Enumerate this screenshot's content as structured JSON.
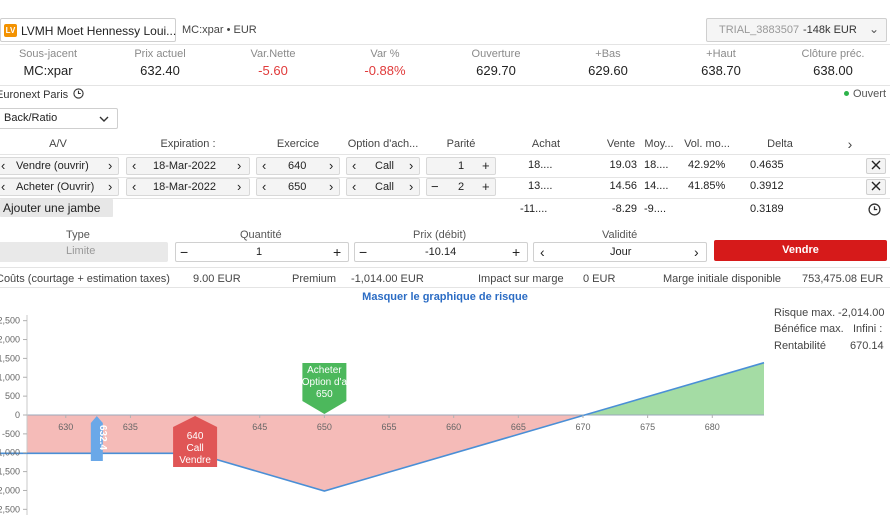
{
  "header": {
    "ticker_name": "LVMH Moet Hennessy Loui...",
    "ticker_code": "MC:xpar • EUR",
    "logo_text": "LV",
    "account_id": "TRIAL_3883507",
    "account_value": "-148k EUR",
    "account_chevron": "⌄"
  },
  "quote": [
    {
      "label": "Sous-jacent",
      "value": "MC:xpar",
      "color": "#222222"
    },
    {
      "label": "Prix actuel",
      "value": "632.40",
      "color": "#222222"
    },
    {
      "label": "Var.Nette",
      "value": "-5.60",
      "color": "#e03a3a"
    },
    {
      "label": "Var %",
      "value": "-0.88%",
      "color": "#e03a3a"
    },
    {
      "label": "Ouverture",
      "value": "629.70",
      "color": "#222222"
    },
    {
      "label": "+Bas",
      "value": "629.60",
      "color": "#222222"
    },
    {
      "label": "+Haut",
      "value": "638.70",
      "color": "#222222"
    },
    {
      "label": "Clôture préc.",
      "value": "638.00",
      "color": "#222222"
    }
  ],
  "market": {
    "exchange": "Euronext Paris",
    "status": "Ouvert",
    "status_color": "#2db34a"
  },
  "strategy": {
    "selected": "Back/Ratio"
  },
  "table": {
    "headers": {
      "av": "A/V",
      "expiration": "Expiration :",
      "strike": "Exercice",
      "option": "Option d'ach...",
      "parity": "Parité",
      "buy": "Achat",
      "sell": "Vente",
      "mid": "Moy...",
      "vol": "Vol. mo...",
      "delta": "Delta",
      "more": "›"
    },
    "legs": [
      {
        "action": "Vendre (ouvrir)",
        "expiration": "18-Mar-2022",
        "strike": "640",
        "type": "Call",
        "minus": "",
        "qty": "1",
        "plus": "+",
        "buy": "18....",
        "sell": "19.03",
        "mid": "18....",
        "vol": "42.92%",
        "delta": "0.4635"
      },
      {
        "action": "Acheter (Ouvrir)",
        "expiration": "18-Mar-2022",
        "strike": "650",
        "type": "Call",
        "minus": "−",
        "qty": "2",
        "plus": "+",
        "buy": "13....",
        "sell": "14.56",
        "mid": "14....",
        "vol": "41.85%",
        "delta": "0.3912"
      }
    ],
    "add_leg": "Ajouter une jambe",
    "totals": {
      "buy": "-11....",
      "sell": "-8.29",
      "mid": "-9....",
      "delta": "0.3189"
    }
  },
  "order": {
    "type_label": "Type",
    "type_value": "Limite",
    "qty_label": "Quantité",
    "qty_value": "1",
    "price_label": "Prix (débit)",
    "price_value": "-10.14",
    "validity_label": "Validité",
    "validity_value": "Jour",
    "submit": "Vendre"
  },
  "costs": {
    "costs_label": "Coûts (courtage + estimation taxes)",
    "costs_value": "9.00 EUR",
    "premium_label": "Premium",
    "premium_value": "-1,014.00 EUR",
    "margin_label": "Impact sur marge",
    "margin_value": "0 EUR",
    "initial_label": "Marge initiale disponible",
    "initial_value": "753,475.08 EUR"
  },
  "risk_toggle": "Masquer le graphique de risque",
  "risk_stats": {
    "max_risk_label": "Risque max.",
    "max_risk_value": "-2,014.00",
    "max_profit_label": "Bénéfice max.",
    "max_profit_value": "Infini :",
    "return_label": "Rentabilité",
    "return_value": "670.14"
  },
  "chart_data": {
    "type": "area",
    "x": [
      620,
      640,
      650,
      670,
      684
    ],
    "y": [
      -1014,
      -1014,
      -2014,
      -14,
      1386
    ],
    "xticks": [
      "630",
      "635",
      "640",
      "645",
      "650",
      "655",
      "660",
      "665",
      "670",
      "675",
      "680"
    ],
    "yticks": [
      "2,500",
      "2,000",
      "1,500",
      "1,000",
      "500",
      "0",
      "-500",
      "-1,000",
      "-1,500",
      "-2,000",
      "-2,500"
    ],
    "xlim": [
      627,
      684
    ],
    "ylim": [
      -2650,
      2650
    ],
    "current_price": "632.4",
    "markers": [
      {
        "x": 640,
        "lines": [
          "640",
          "Call",
          "Vendre"
        ],
        "color": "#e05656"
      },
      {
        "x": 650,
        "lines": [
          "Acheter",
          "Option d'a",
          "650"
        ],
        "color": "#4cb85c"
      }
    ],
    "profit_color": "#9ad89a",
    "loss_color": "#f4b4b0",
    "line_color": "#4a8fd6",
    "grid": false
  }
}
